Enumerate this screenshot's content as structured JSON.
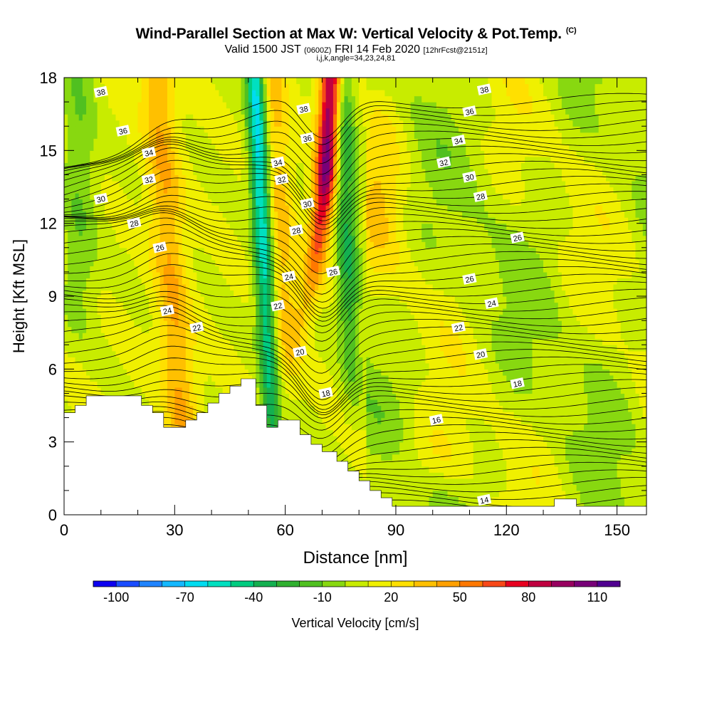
{
  "header": {
    "title": "Wind-Parallel Section at Max W: Vertical Velocity & Pot.Temp.",
    "copyright": "(C)",
    "valid_prefix": "Valid 1500 JST",
    "valid_utc": "(0600Z)",
    "valid_date": "FRI 14 Feb 2020",
    "forecast": "[12hrFcst@2151z]",
    "indices": "i,j,k,angle=34,23,24,81"
  },
  "colors": {
    "velocity_scale": [
      "#0d00f0",
      "#1a4cff",
      "#1f84ff",
      "#14b8ff",
      "#00dcf0",
      "#00e0c0",
      "#00cc80",
      "#14b050",
      "#30b030",
      "#50c020",
      "#88d810",
      "#c8ec00",
      "#f0f000",
      "#ffe000",
      "#ffc000",
      "#ffa000",
      "#ff7800",
      "#f84818",
      "#e80020",
      "#c00040",
      "#980060",
      "#780078",
      "#500090"
    ],
    "terrain": "#ffffff",
    "contour": "#000000"
  },
  "chart_data": {
    "type": "heatmap",
    "subtype": "vertical cross-section (filled contours of vertical velocity with potential temperature contour lines)",
    "xlabel": "Distance [nm]",
    "ylabel": "Height [Kft MSL]",
    "xlim": [
      0,
      158
    ],
    "ylim": [
      0,
      18
    ],
    "x_ticks": [
      0,
      30,
      60,
      90,
      120,
      150
    ],
    "y_ticks": [
      0,
      3,
      6,
      9,
      12,
      15,
      18
    ],
    "colorbar": {
      "label": "Vertical Velocity [cm/s]",
      "range": [
        -110,
        120
      ],
      "step": 10,
      "tick_labels": [
        "-100",
        "-70",
        "-40",
        "-10",
        "20",
        "50",
        "80",
        "110"
      ],
      "tick_values": [
        -100,
        -70,
        -40,
        -10,
        20,
        50,
        80,
        110
      ]
    },
    "contour_labels": [
      {
        "text": "38",
        "x": 10,
        "y": 17.4
      },
      {
        "text": "36",
        "x": 16,
        "y": 15.8
      },
      {
        "text": "34",
        "x": 23,
        "y": 14.9
      },
      {
        "text": "32",
        "x": 23,
        "y": 13.8
      },
      {
        "text": "30",
        "x": 10,
        "y": 13.0
      },
      {
        "text": "28",
        "x": 19,
        "y": 12.0
      },
      {
        "text": "26",
        "x": 26,
        "y": 11.0
      },
      {
        "text": "24",
        "x": 28,
        "y": 8.4
      },
      {
        "text": "22",
        "x": 36,
        "y": 7.7
      },
      {
        "text": "38",
        "x": 65,
        "y": 16.7
      },
      {
        "text": "36",
        "x": 66,
        "y": 15.5
      },
      {
        "text": "34",
        "x": 58,
        "y": 14.5
      },
      {
        "text": "32",
        "x": 59,
        "y": 13.8
      },
      {
        "text": "30",
        "x": 66,
        "y": 12.8
      },
      {
        "text": "28",
        "x": 63,
        "y": 11.7
      },
      {
        "text": "26",
        "x": 73,
        "y": 10.0
      },
      {
        "text": "24",
        "x": 61,
        "y": 9.8
      },
      {
        "text": "22",
        "x": 58,
        "y": 8.6
      },
      {
        "text": "20",
        "x": 64,
        "y": 6.7
      },
      {
        "text": "18",
        "x": 71,
        "y": 5.0
      },
      {
        "text": "16",
        "x": 101,
        "y": 3.9
      },
      {
        "text": "14",
        "x": 114,
        "y": 0.6
      },
      {
        "text": "38",
        "x": 114,
        "y": 17.5
      },
      {
        "text": "36",
        "x": 110,
        "y": 16.6
      },
      {
        "text": "34",
        "x": 107,
        "y": 15.4
      },
      {
        "text": "32",
        "x": 103,
        "y": 14.5
      },
      {
        "text": "30",
        "x": 110,
        "y": 13.9
      },
      {
        "text": "28",
        "x": 113,
        "y": 13.1
      },
      {
        "text": "26",
        "x": 123,
        "y": 11.4
      },
      {
        "text": "26",
        "x": 110,
        "y": 9.7
      },
      {
        "text": "24",
        "x": 116,
        "y": 8.7
      },
      {
        "text": "22",
        "x": 107,
        "y": 7.7
      },
      {
        "text": "20",
        "x": 113,
        "y": 6.6
      },
      {
        "text": "18",
        "x": 123,
        "y": 5.4
      }
    ],
    "terrain_profile": [
      [
        0,
        4.2
      ],
      [
        3,
        4.2
      ],
      [
        3,
        4.5
      ],
      [
        6,
        4.5
      ],
      [
        6,
        4.9
      ],
      [
        21,
        4.9
      ],
      [
        21,
        4.5
      ],
      [
        24,
        4.5
      ],
      [
        24,
        4.2
      ],
      [
        27,
        4.2
      ],
      [
        27,
        3.6
      ],
      [
        33,
        3.6
      ],
      [
        33,
        3.9
      ],
      [
        36,
        3.9
      ],
      [
        36,
        4.2
      ],
      [
        39,
        4.2
      ],
      [
        39,
        4.6
      ],
      [
        42,
        4.6
      ],
      [
        42,
        5.0
      ],
      [
        45,
        5.0
      ],
      [
        45,
        5.3
      ],
      [
        48,
        5.3
      ],
      [
        48,
        5.6
      ],
      [
        52,
        5.6
      ],
      [
        52,
        4.5
      ],
      [
        55,
        4.5
      ],
      [
        55,
        3.6
      ],
      [
        58,
        3.6
      ],
      [
        58,
        3.9
      ],
      [
        64,
        3.9
      ],
      [
        64,
        3.3
      ],
      [
        67,
        3.3
      ],
      [
        67,
        2.9
      ],
      [
        70,
        2.9
      ],
      [
        70,
        2.6
      ],
      [
        74,
        2.6
      ],
      [
        74,
        2.2
      ],
      [
        77,
        2.2
      ],
      [
        77,
        1.8
      ],
      [
        80,
        1.8
      ],
      [
        80,
        1.4
      ],
      [
        83,
        1.4
      ],
      [
        83,
        1.0
      ],
      [
        86,
        1.0
      ],
      [
        86,
        0.7
      ],
      [
        89,
        0.7
      ],
      [
        89,
        0.35
      ],
      [
        133,
        0.35
      ],
      [
        133,
        0.65
      ],
      [
        139,
        0.65
      ],
      [
        139,
        0.35
      ],
      [
        158,
        0.35
      ]
    ]
  }
}
